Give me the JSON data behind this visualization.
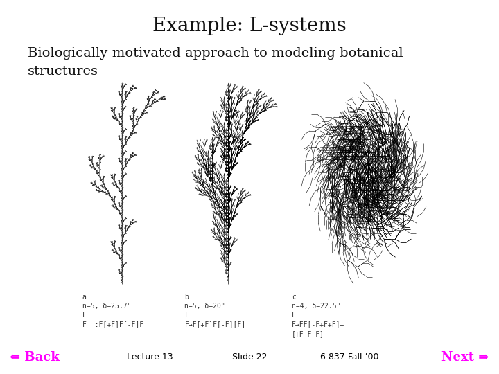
{
  "title": "Example: L-systems",
  "subtitle_line1": "Biologically-motivated approach to modeling botanical",
  "subtitle_line2": "structures",
  "footer_left": "⇐ Back",
  "footer_center_left": "Lecture 13",
  "footer_center": "Slide 22",
  "footer_center_right": "6.837 Fall ’00",
  "footer_right": "Next ⇒",
  "footer_color": "#FF00FF",
  "footer_text_color": "#000000",
  "bg_color": "#FFFFFF",
  "title_fontsize": 20,
  "subtitle_fontsize": 14,
  "footer_fontsize": 9,
  "caption_fontsize": 7
}
